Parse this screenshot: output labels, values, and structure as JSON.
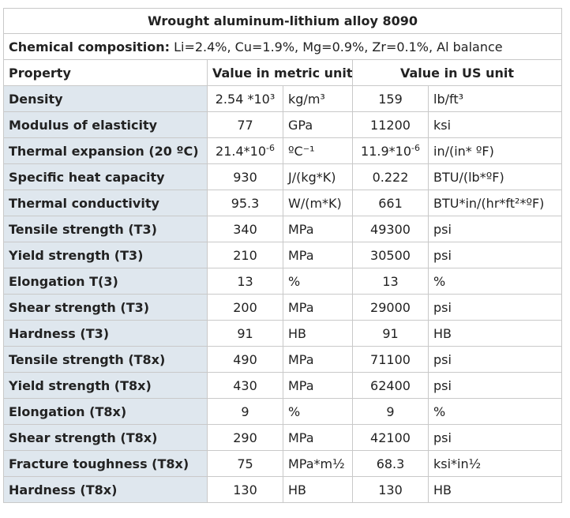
{
  "table": {
    "title": "Wrought aluminum-lithium alloy 8090",
    "composition_label": "Chemical composition:",
    "composition_value": "Li=2.4%, Cu=1.9%, Mg=0.9%, Zr=0.1%, Al balance",
    "headers": {
      "property": "Property",
      "metric": "Value in metric unit",
      "us": "Value in US unit"
    },
    "rows": [
      {
        "property": "Density",
        "metric_value": "2.54 *10³",
        "metric_unit": "kg/m³",
        "us_value": "159",
        "us_unit": "lb/ft³"
      },
      {
        "property": "Modulus of elasticity",
        "metric_value": "77",
        "metric_unit": "GPa",
        "us_value": "11200",
        "us_unit": "ksi"
      },
      {
        "property": "Thermal expansion (20 ºC)",
        "metric_value": "21.4*10",
        "metric_exp": "-6",
        "metric_unit": "ºC⁻¹",
        "us_value": "11.9*10",
        "us_exp": "-6",
        "us_unit": "in/(in* ºF)"
      },
      {
        "property": "Specific heat capacity",
        "metric_value": "930",
        "metric_unit": "J/(kg*K)",
        "us_value": "0.222",
        "us_unit": "BTU/(lb*ºF)"
      },
      {
        "property": "Thermal conductivity",
        "metric_value": "95.3",
        "metric_unit": "W/(m*K)",
        "us_value": "661",
        "us_unit": "BTU*in/(hr*ft²*ºF)"
      },
      {
        "property": "Tensile strength (T3)",
        "metric_value": "340",
        "metric_unit": "MPa",
        "us_value": "49300",
        "us_unit": "psi"
      },
      {
        "property": "Yield strength (T3)",
        "metric_value": "210",
        "metric_unit": "MPa",
        "us_value": "30500",
        "us_unit": "psi"
      },
      {
        "property": "Elongation T(3)",
        "metric_value": "13",
        "metric_unit": "%",
        "us_value": "13",
        "us_unit": "%"
      },
      {
        "property": "Shear strength (T3)",
        "metric_value": "200",
        "metric_unit": "MPa",
        "us_value": "29000",
        "us_unit": "psi"
      },
      {
        "property": "Hardness (T3)",
        "metric_value": "91",
        "metric_unit": "HB",
        "us_value": "91",
        "us_unit": "HB"
      },
      {
        "property": "Tensile strength (T8x)",
        "metric_value": "490",
        "metric_unit": "MPa",
        "us_value": "71100",
        "us_unit": "psi"
      },
      {
        "property": "Yield strength (T8x)",
        "metric_value": "430",
        "metric_unit": "MPa",
        "us_value": "62400",
        "us_unit": "psi"
      },
      {
        "property": "Elongation (T8x)",
        "metric_value": "9",
        "metric_unit": "%",
        "us_value": "9",
        "us_unit": "%"
      },
      {
        "property": "Shear strength (T8x)",
        "metric_value": "290",
        "metric_unit": "MPa",
        "us_value": "42100",
        "us_unit": "psi"
      },
      {
        "property": "Fracture toughness (T8x)",
        "metric_value": "75",
        "metric_unit": "MPa*m½",
        "us_value": "68.3",
        "us_unit": "ksi*in½"
      },
      {
        "property": "Hardness (T8x)",
        "metric_value": "130",
        "metric_unit": "HB",
        "us_value": "130",
        "us_unit": "HB"
      }
    ]
  },
  "colors": {
    "property_column_bg": "#dfe7ee",
    "border": "#c9c9c9",
    "text": "#222222"
  }
}
